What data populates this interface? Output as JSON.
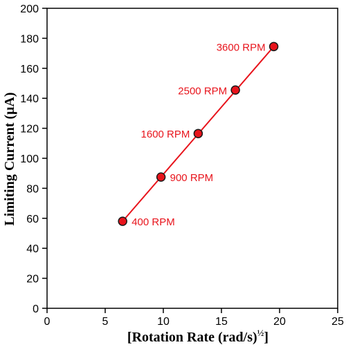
{
  "chart_data": {
    "type": "scatter",
    "xlabel": "[Rotation Rate (rad/s)",
    "xlabel_sup": "½",
    "xlabel_end": "]",
    "ylabel": "Limiting Current (μA)",
    "xlim": [
      0,
      25
    ],
    "ylim": [
      0,
      200
    ],
    "x_ticks": [
      0,
      5,
      10,
      15,
      20,
      25
    ],
    "y_ticks": [
      0,
      20,
      40,
      60,
      80,
      100,
      120,
      140,
      160,
      180,
      200
    ],
    "grid": false,
    "series": [
      {
        "points": [
          {
            "x": 6.5,
            "y": 58,
            "label": "400 RPM"
          },
          {
            "x": 9.8,
            "y": 87.5,
            "label": "900 RPM"
          },
          {
            "x": 13.0,
            "y": 116.5,
            "label": "1600 RPM"
          },
          {
            "x": 16.2,
            "y": 145.5,
            "label": "2500 RPM"
          },
          {
            "x": 19.5,
            "y": 174.5,
            "label": "3600 RPM"
          }
        ],
        "fit_line": {
          "x": [
            6.5,
            19.5
          ],
          "y": [
            58,
            174.5
          ]
        }
      }
    ],
    "colors": {
      "marker": "#e8141c",
      "line": "#e8141c",
      "label": "#e8141c",
      "axis": "#000000"
    }
  }
}
